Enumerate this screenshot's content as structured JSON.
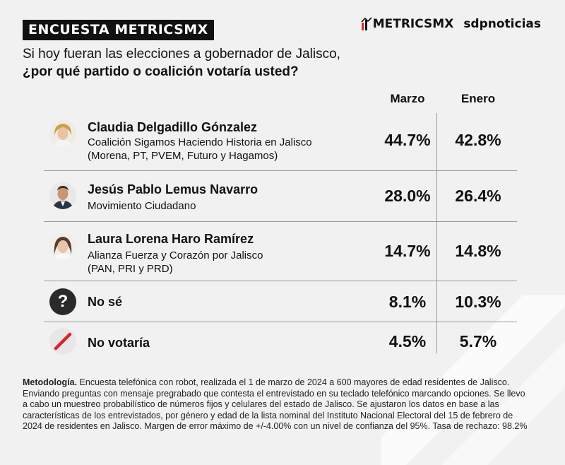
{
  "banner": "ENCUESTA METRICSMX",
  "logos": {
    "metrics": "METRICSMX",
    "sdp": "sdpnoticias"
  },
  "question": {
    "line1": "Si hoy fueran las elecciones a gobernador de Jalisco,",
    "line2": "¿por qué partido o coalición votaría usted?"
  },
  "columns": {
    "march": "Marzo",
    "january": "Enero"
  },
  "chart_data": {
    "type": "table",
    "title": "Si hoy fueran las elecciones a gobernador de Jalisco, ¿por qué partido o coalición votaría usted?",
    "columns": [
      "Marzo",
      "Enero"
    ],
    "rows": [
      {
        "name": "Claudia Delgadillo Gónzalez",
        "sub1": "Coalición Sigamos Haciendo Historia en Jalisco",
        "sub2": "(Morena, PT, PVEM, Futuro y Hagamos)",
        "march": "44.7%",
        "january": "42.8%",
        "march_value": 44.7,
        "january_value": 42.8
      },
      {
        "name": "Jesús Pablo Lemus Navarro",
        "sub1": "Movimiento Ciudadano",
        "sub2": "",
        "march": "28.0%",
        "january": "26.4%",
        "march_value": 28.0,
        "january_value": 26.4
      },
      {
        "name": "Laura Lorena Haro Ramírez",
        "sub1": "Alianza Fuerza y Corazón por Jalisco",
        "sub2": "(PAN, PRI y PRD)",
        "march": "14.7%",
        "january": "14.8%",
        "march_value": 14.7,
        "january_value": 14.8
      },
      {
        "name": "No sé",
        "sub1": "",
        "sub2": "",
        "march": "8.1%",
        "january": "10.3%",
        "march_value": 8.1,
        "january_value": 10.3
      },
      {
        "name": "No votaría",
        "sub1": "",
        "sub2": "",
        "march": "4.5%",
        "january": "5.7%",
        "march_value": 4.5,
        "january_value": 5.7
      }
    ]
  },
  "icons": {
    "no_se": "?",
    "colors": {
      "accent_red": "#d9262c",
      "dark": "#2a2a2a"
    }
  },
  "methodology": {
    "label": "Metodología.",
    "text": " Encuesta telefónica con robot, realizada el 1 de marzo de 2024 a 600 mayores de edad residentes de Jalisco. Enviando preguntas con mensaje pregrabado que contesta el entrevistado en su teclado telefónico marcando opciones. Se llevo a cabo un muestreo probabilístico de números fijos y celulares del estado de Jalisco. Se ajustaron los datos en base a las características de los entrevistados, por género y edad de la lista nominal del Instituto Nacional Electoral del 15 de febrero de 2024 de residentes en Jalisco. Margen de error máximo de +/-4.00% con un nivel de confianza del 95%. Tasa de rechazo: 98.2%"
  }
}
